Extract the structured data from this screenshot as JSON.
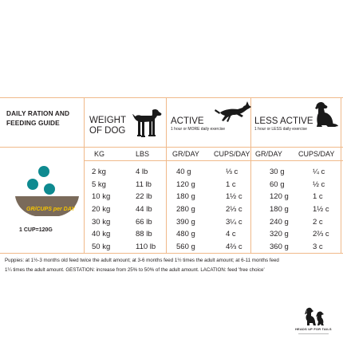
{
  "guide": {
    "title_line1": "DAILY RATION AND",
    "title_line2": "FEEDING GUIDE"
  },
  "weight": {
    "title_line1": "WEIGHT",
    "title_line2": "OF DOG",
    "col_kg": "KG",
    "col_lbs": "LBS",
    "kg": [
      "2 kg",
      "5 kg",
      "10 kg",
      "20 kg",
      "30 kg",
      "40 kg",
      "50 kg"
    ],
    "lbs": [
      "4 lb",
      "11 lb",
      "22 lb",
      "44 lb",
      "66 lb",
      "88 lb",
      "110 lb"
    ]
  },
  "active": {
    "title": "ACTIVE",
    "subtitle": "1 hour or MORE daily exercise",
    "col_gr": "GR/DAY",
    "col_cups": "CUPS/DAY",
    "gr": [
      "40 g",
      "120 g",
      "180 g",
      "280 g",
      "390 g",
      "480 g",
      "560 g"
    ],
    "cups": [
      "⅓ c",
      "1 c",
      "1½ c",
      "2⅓ c",
      "3¼ c",
      "4 c",
      "4⅔ c"
    ]
  },
  "less_active": {
    "title": "LESS ACTIVE",
    "subtitle": "1 hour or LESS daily exercise",
    "col_gr": "GR/DAY",
    "col_cups": "CUPS/DAY",
    "gr": [
      "30 g",
      "60 g",
      "120 g",
      "180 g",
      "240 g",
      "320 g",
      "360 g"
    ],
    "cups": [
      "¼ c",
      "½ c",
      "1 c",
      "1½ c",
      "2 c",
      "2⅔ c",
      "3 c"
    ]
  },
  "bowl": {
    "label": "GR/CUPS per DAY",
    "cup_equivalence": "1 CUP=120G"
  },
  "footnote": {
    "line1": "Puppies: at 1½-3 months old feed twice the adult amount; at 3-6 months feed 1½ times the adult amount; at 6-11 months feed",
    "line2": "1¼ times the adult amount. GESTATION: increase from 25% to 50% of the adult amount. LACATION: feed 'free choice'"
  },
  "brand": {
    "name": "HEADS UP FOR TAILS"
  },
  "colors": {
    "rule": "#f0b98a",
    "bowl": "#7a6a5a",
    "kibble": "#0e8a90",
    "bowl_text": "#f5c400"
  },
  "icons": [
    "beagle-dog-icon",
    "leaping-dog-icon",
    "sitting-dog-icon",
    "dog-food-bowl-icon",
    "brand-dog-logo-icon"
  ]
}
